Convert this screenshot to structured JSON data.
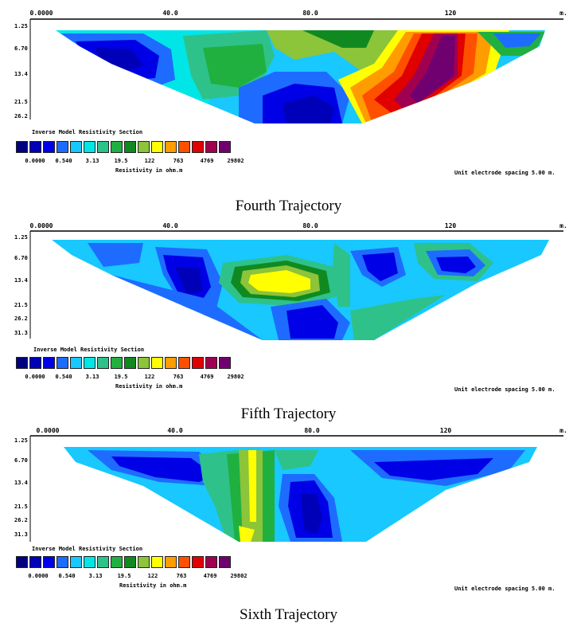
{
  "axis_ticks": [
    "0.0000",
    "40.0",
    "80.0",
    "120",
    "m."
  ],
  "legend": {
    "title": "Inverse Model Resistivity Section",
    "values": [
      "0.0000",
      "0.0000",
      "0.540",
      "3.13",
      "19.5",
      "122",
      "763",
      "4769",
      "29802"
    ],
    "unit": "Resistivity in ohm.m",
    "colors": [
      "#000080",
      "#0000b8",
      "#0000e6",
      "#1e6cff",
      "#18c8ff",
      "#00e6e6",
      "#2ec28a",
      "#20b040",
      "#108a20",
      "#8cc43a",
      "#ffff00",
      "#ff9c00",
      "#ff5000",
      "#e00000",
      "#a00050",
      "#700070"
    ]
  },
  "panels": [
    {
      "depths": [
        "1.25",
        "6.70",
        "13.4",
        "21.5",
        "26.2"
      ],
      "spacing": "Unit electrode spacing 5.00 m.",
      "caption": "Fourth Trajectory"
    },
    {
      "depths": [
        "1.25",
        "6.70",
        "13.4",
        "21.5",
        "26.2",
        "31.3"
      ],
      "spacing": "Unit electrode spacing 5.00 m.",
      "caption": "Fifth Trajectory"
    },
    {
      "depths": [
        "1.25",
        "6.70",
        "13.4",
        "21.5",
        "26.2",
        "31.3"
      ],
      "spacing": "Unit electrode spacing 5.00 m.",
      "caption": "Sixth Trajectory"
    }
  ]
}
